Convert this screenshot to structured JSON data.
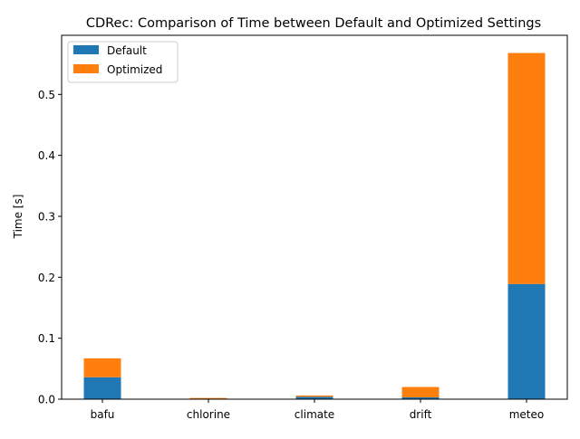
{
  "chart_data": {
    "type": "bar",
    "stacked": true,
    "title": "CDRec: Comparison of Time between Default and Optimized Settings",
    "xlabel": "",
    "ylabel": "Time [s]",
    "categories": [
      "bafu",
      "chlorine",
      "climate",
      "drift",
      "meteo"
    ],
    "series": [
      {
        "name": "Default",
        "color": "#1f77b4",
        "values": [
          0.036,
          0.0005,
          0.004,
          0.003,
          0.189
        ]
      },
      {
        "name": "Optimized",
        "color": "#ff7f0e",
        "values": [
          0.031,
          0.0015,
          0.002,
          0.017,
          0.379
        ]
      }
    ],
    "ylim": [
      0,
      0.597
    ],
    "yticks": [
      0.0,
      0.1,
      0.2,
      0.3,
      0.4,
      0.5
    ],
    "ytick_labels": [
      "0.0",
      "0.1",
      "0.2",
      "0.3",
      "0.4",
      "0.5"
    ],
    "grid": false,
    "legend_position": "top-left"
  }
}
